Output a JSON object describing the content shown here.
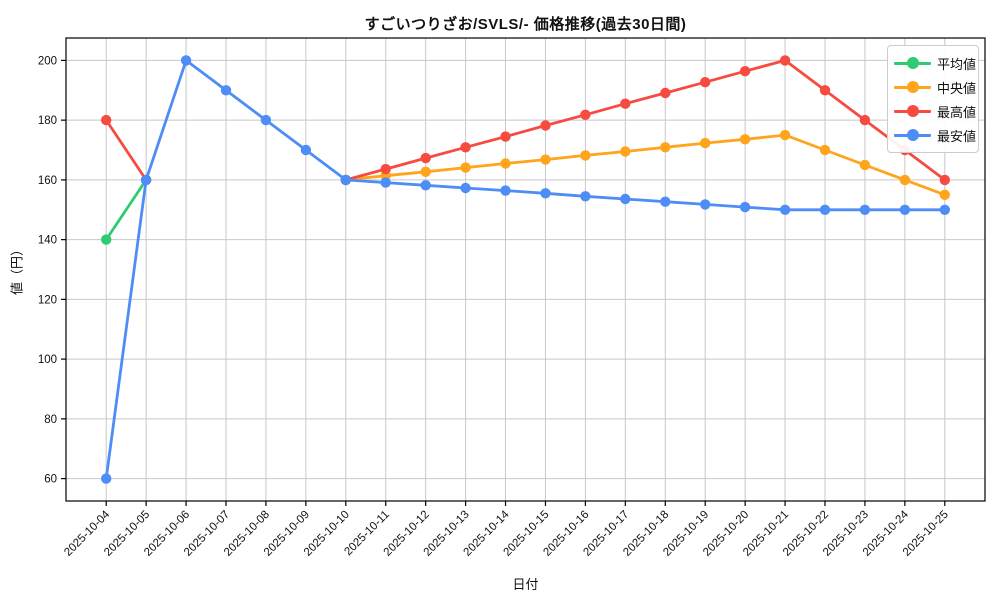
{
  "figure": {
    "background": "#ffffff"
  },
  "chart_data": {
    "type": "line",
    "title": "すごいつりざお/SVLS/- 価格推移(過去30日間)",
    "xlabel": "日付",
    "ylabel": "値（円）",
    "x": [
      "2025-10-04",
      "2025-10-05",
      "2025-10-06",
      "2025-10-07",
      "2025-10-08",
      "2025-10-09",
      "2025-10-10",
      "2025-10-11",
      "2025-10-12",
      "2025-10-13",
      "2025-10-14",
      "2025-10-15",
      "2025-10-16",
      "2025-10-17",
      "2025-10-18",
      "2025-10-19",
      "2025-10-20",
      "2025-10-21",
      "2025-10-22",
      "2025-10-23",
      "2025-10-24",
      "2025-10-25"
    ],
    "yticks": [
      60,
      80,
      100,
      120,
      140,
      160,
      180,
      200
    ],
    "ylim": [
      52.5,
      207.5
    ],
    "grid": true,
    "legend_position": "upper-right",
    "series": [
      {
        "id": "average",
        "name": "平均値",
        "color": "#2dcc70",
        "values": [
          140,
          160,
          null,
          null,
          null,
          null,
          null,
          null,
          null,
          null,
          null,
          null,
          null,
          null,
          null,
          null,
          null,
          null,
          null,
          null,
          null,
          null
        ]
      },
      {
        "id": "median",
        "name": "中央値",
        "color": "#ffa41b",
        "values": [
          null,
          null,
          null,
          null,
          null,
          null,
          160,
          161.4,
          162.7,
          164.1,
          165.5,
          166.8,
          168.2,
          169.5,
          170.9,
          172.3,
          173.6,
          175,
          170,
          165,
          160,
          155
        ]
      },
      {
        "id": "highest",
        "name": "最高値",
        "color": "#f74b41",
        "values": [
          180,
          160,
          null,
          null,
          null,
          null,
          160,
          163.6,
          167.3,
          170.9,
          174.5,
          178.2,
          181.8,
          185.5,
          189.1,
          192.7,
          196.4,
          200,
          190,
          180,
          170,
          160
        ]
      },
      {
        "id": "lowest",
        "name": "最安値",
        "color": "#4d8df5",
        "values": [
          60,
          160,
          200,
          190,
          180,
          170,
          160,
          159.1,
          158.2,
          157.3,
          156.4,
          155.5,
          154.5,
          153.6,
          152.7,
          151.8,
          150.9,
          150,
          150,
          150,
          150,
          150
        ]
      }
    ],
    "colors": {
      "grid": "#c8c8c8",
      "spine": "#000000",
      "text": "#111111",
      "legend_border": "#cccccc"
    }
  }
}
